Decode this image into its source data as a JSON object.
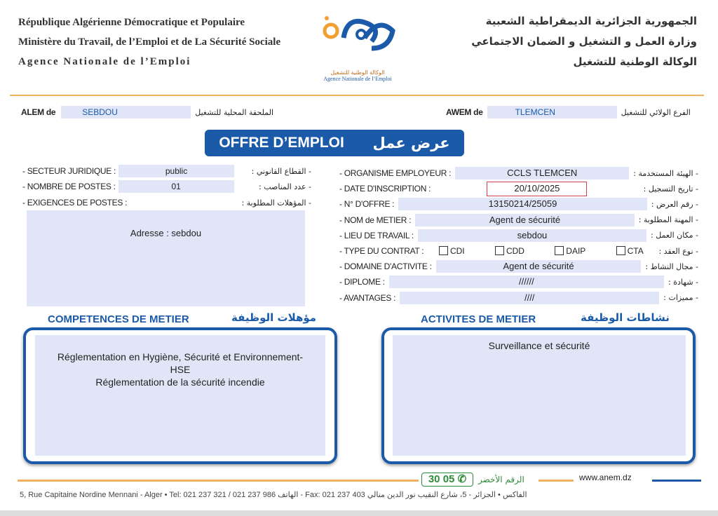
{
  "header": {
    "fr": [
      "République Algérienne Démocratique et Populaire",
      "Ministère du Travail, de l’Emploi et de La Sécurité Sociale",
      "Agence Nationale de l’Emploi"
    ],
    "ar": [
      "الجمهورية الجزائرية الديمقراطية الشعبية",
      "وزارة العمل و التشغيل و الضمان الاجتماعي",
      "الوكالة الوطنية للتشغيل"
    ],
    "logo_ar": "الوكالة الوطنية للتشغيل",
    "logo_fr": "Agence Nationale de l’Emploi"
  },
  "alem": {
    "label": "ALEM de",
    "value": "SEBDOU",
    "ar": "الملحقة المحلية للتشغيل"
  },
  "awem": {
    "label": "AWEM de",
    "value": "TLEMCEN",
    "ar": "الفرع الولائي للتشغيل"
  },
  "title": {
    "fr": "OFFRE D’EMPLOI",
    "ar": "عرض عمل"
  },
  "left": [
    {
      "label": "- SECTEUR JURIDIQUE :",
      "value": "public",
      "ar": "- القطاع القانوني :"
    },
    {
      "label": "- NOMBRE DE POSTES :",
      "value": "01",
      "ar": "- عدد المناصب :"
    },
    {
      "label": "- EXIGENCES DE POSTES :",
      "ar": "- المؤهلات المطلوبة :"
    }
  ],
  "address": "Adresse : sebdou",
  "right": [
    {
      "label": "- ORGANISME EMPLOYEUR :",
      "value": "CCLS TLEMCEN",
      "ar": "- الهيئة المستخدمة :"
    },
    {
      "label": "- DATE D'INSCRIPTION :",
      "value": "20/10/2025",
      "ar": "- تاريخ التسجيل :"
    },
    {
      "label": "- N° D'OFFRE :",
      "value": "13150214/25059",
      "ar": "- رقم العرض :"
    },
    {
      "label": "- NOM de METIER :",
      "value": "Agent de sécurité",
      "ar": "- المهنة المطلوبة :"
    },
    {
      "label": "- LIEU DE TRAVAIL :",
      "value": "sebdou",
      "ar": "- مكان العمل :"
    },
    {
      "label": "- TYPE DU CONTRAT :",
      "ar": "- نوع العقد :"
    },
    {
      "label": "- DOMAINE D'ACTIVITE :",
      "value": "Agent de sécurité",
      "ar": "- مجال النشاط :"
    },
    {
      "label": "- DIPLOME :",
      "value": "//////",
      "ar": "- شهادة :"
    },
    {
      "label": "- AVANTAGES :",
      "value": "////",
      "ar": "- مميزات :"
    }
  ],
  "contracts": [
    "CDI",
    "CDD",
    "DAIP",
    "CTA"
  ],
  "competences": {
    "fr": "COMPETENCES DE METIER",
    "ar": "مؤهلات الوظيفة",
    "lines": [
      "Réglementation en Hygiène, Sécurité et Environnement-",
      "HSE",
      "Réglementation de la sécurité incendie"
    ]
  },
  "activites": {
    "fr": "ACTIVITES DE METIER",
    "ar": "نشاطات الوظيفة",
    "text": "Surveillance et sécurité"
  },
  "footer": {
    "green_number": "30 05",
    "green_label": "الرقم الأخضر",
    "website": "www.anem.dz",
    "address": "5, Rue Capitaine Nordine Mennani - Alger • Tel: 021 237 321 / 021 237 986 الهاتف - Fax: 021 237 403 الفاكس • الجزائر - 5، شارع النقيب نور الدين منالي"
  },
  "colors": {
    "blue": "#1a5aa8",
    "orange": "#f0b060",
    "field": "#e0e6f8",
    "green": "#2e8b3a"
  }
}
